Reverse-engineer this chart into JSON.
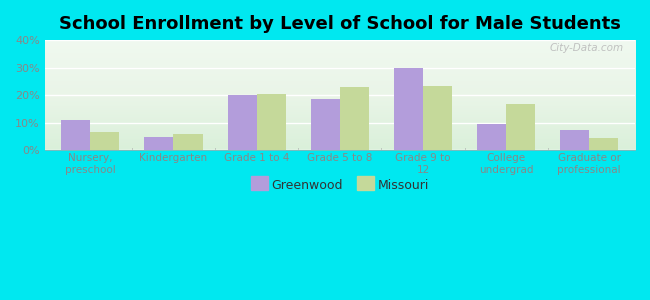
{
  "title": "School Enrollment by Level of School for Male Students",
  "categories": [
    "Nursery,\npreschool",
    "Kindergarten",
    "Grade 1 to 4",
    "Grade 5 to 8",
    "Grade 9 to\n12",
    "College\nundergrad",
    "Graduate or\nprofessional"
  ],
  "greenwood": [
    11,
    5,
    20,
    18.5,
    30,
    9.5,
    7.5
  ],
  "missouri": [
    6.5,
    6,
    20.5,
    23,
    23.5,
    17,
    4.5
  ],
  "greenwood_color": "#b39ddb",
  "missouri_color": "#c5d99a",
  "background_color": "#00e8f0",
  "ylim": [
    0,
    40
  ],
  "yticks": [
    0,
    10,
    20,
    30,
    40
  ],
  "ytick_labels": [
    "0%",
    "10%",
    "20%",
    "30%",
    "40%"
  ],
  "bar_width": 0.35,
  "title_fontsize": 13,
  "legend_labels": [
    "Greenwood",
    "Missouri"
  ],
  "watermark": "City-Data.com",
  "plot_bg_top": "#e8f5e9",
  "plot_bg_bottom": "#c8e6c9",
  "tick_color": "#888888",
  "label_color": "#888888"
}
